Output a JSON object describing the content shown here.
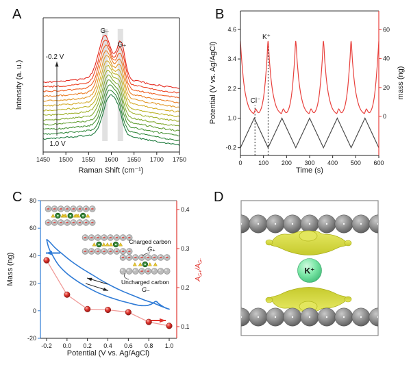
{
  "figure": {
    "panels": [
      {
        "label": "A"
      },
      {
        "label": "B"
      },
      {
        "label": "C"
      },
      {
        "label": "D"
      }
    ]
  },
  "chart_data": [
    {
      "id": "A",
      "type": "line",
      "xlabel": "Raman Shift (cm⁻¹)",
      "ylabel": "Intensity (a. u.)",
      "xlim": [
        1450,
        1750
      ],
      "xticks": [
        1450,
        1500,
        1550,
        1600,
        1650,
        1700,
        1750
      ],
      "grid": false,
      "n_spectra": 13,
      "potential_range_labels": {
        "top": "-0.2 V",
        "bottom": "1.0 V"
      },
      "peak_labels": [
        {
          "text": "G₋",
          "x_cm": 1586
        },
        {
          "text": "G₊",
          "x_cm": 1622
        }
      ],
      "band_centers_cm": [
        1586,
        1620
      ],
      "curve_colors_bottom_to_top": [
        "#1d7a3c",
        "#2f8739",
        "#479336",
        "#639f34",
        "#82aa31",
        "#a1b22e",
        "#bdb42b",
        "#d4ab29",
        "#e29726",
        "#ea7d24",
        "#ee5f22",
        "#ec4120",
        "#e4281e"
      ]
    },
    {
      "id": "B",
      "type": "line",
      "xlabel": "Time (s)",
      "ylabel_left": "Potential (V vs. Ag/AgCl)",
      "ylabel_right": "mass (ng)",
      "xlim": [
        0,
        600
      ],
      "xticks": [
        0,
        100,
        200,
        300,
        400,
        500,
        600
      ],
      "yticks_left": [
        4.6,
        3.4,
        2.2,
        1.0,
        -0.2
      ],
      "yticks_right": [
        0,
        20,
        40,
        60
      ],
      "annotations": [
        {
          "text": "K⁺",
          "t": 120
        },
        {
          "text": "Cl⁻",
          "t": 63
        }
      ],
      "series": [
        {
          "name": "potential",
          "color": "#4a4a4a",
          "waveform": "triangle",
          "min_V": -0.2,
          "max_V": 1.0,
          "period_s": 120,
          "cycles": 5
        },
        {
          "name": "mass",
          "color": "#e8403c",
          "period_s": 120,
          "peak_ng": 52,
          "cycle_points_t_ng": [
            [
              0,
              52
            ],
            [
              6,
              38
            ],
            [
              12,
              27
            ],
            [
              18,
              19
            ],
            [
              24,
              13.5
            ],
            [
              30,
              9.5
            ],
            [
              36,
              6.5
            ],
            [
              42,
              4.5
            ],
            [
              48,
              3.2
            ],
            [
              54,
              2.3
            ],
            [
              58,
              2.1
            ],
            [
              62,
              3.8
            ],
            [
              66,
              5.2
            ],
            [
              70,
              4.2
            ],
            [
              75,
              2.9
            ],
            [
              80,
              2.6
            ],
            [
              85,
              3.6
            ],
            [
              90,
              5.5
            ],
            [
              95,
              8.5
            ],
            [
              100,
              13
            ],
            [
              105,
              19.5
            ],
            [
              110,
              28.5
            ],
            [
              115,
              39.5
            ],
            [
              120,
              52
            ]
          ]
        }
      ]
    },
    {
      "id": "C",
      "type": "line+scatter",
      "xlabel": "Potential (V vs. Ag/AgCl)",
      "ylabel_left": "Mass (ng)",
      "ylabel_right_parts": [
        "A",
        "G+",
        "/A",
        "G-"
      ],
      "xticks": [
        -0.2,
        0.0,
        0.2,
        0.4,
        0.6,
        0.8,
        1.0
      ],
      "yticks_left": [
        -20,
        0,
        20,
        40,
        60,
        80
      ],
      "yticks_right": [
        0.1,
        0.2,
        0.3,
        0.4
      ],
      "colors": {
        "mass_loop": "#2f7bd6",
        "ratio_marker": "#e0352f",
        "ratio_line": "#f09a98"
      },
      "series": [
        {
          "name": "mass_loop",
          "loop_V_ng": [
            [
              -0.2,
              52
            ],
            [
              -0.17,
              50
            ],
            [
              -0.12,
              46
            ],
            [
              -0.05,
              41.5
            ],
            [
              0.05,
              35.5
            ],
            [
              0.15,
              30.5
            ],
            [
              0.25,
              26
            ],
            [
              0.35,
              21.5
            ],
            [
              0.45,
              17.5
            ],
            [
              0.55,
              14
            ],
            [
              0.65,
              11
            ],
            [
              0.75,
              8
            ],
            [
              0.85,
              5.5
            ],
            [
              0.93,
              3
            ],
            [
              1.0,
              1.2
            ],
            [
              0.96,
              2.2
            ],
            [
              0.9,
              5
            ],
            [
              0.87,
              6.8
            ],
            [
              0.83,
              5
            ],
            [
              0.78,
              3.8
            ],
            [
              0.7,
              4
            ],
            [
              0.6,
              5.8
            ],
            [
              0.5,
              7.8
            ],
            [
              0.4,
              10.2
            ],
            [
              0.3,
              13.2
            ],
            [
              0.2,
              17
            ],
            [
              0.1,
              21.5
            ],
            [
              0.0,
              27
            ],
            [
              -0.08,
              33
            ],
            [
              -0.14,
              40
            ],
            [
              -0.18,
              46
            ],
            [
              -0.2,
              52
            ]
          ]
        },
        {
          "name": "ratio",
          "points_V_ratio": [
            [
              -0.2,
              0.27
            ],
            [
              0.0,
              0.182
            ],
            [
              0.2,
              0.145
            ],
            [
              0.4,
              0.143
            ],
            [
              0.6,
              0.137
            ],
            [
              0.8,
              0.112
            ],
            [
              1.0,
              0.102
            ]
          ]
        }
      ],
      "inset_labels": {
        "charged": "Charged carbon",
        "charged_sub": "G₊",
        "uncharged": "Uncharged carbon",
        "uncharged_sub": "G₋"
      },
      "insets": [
        {
          "x": 66,
          "y": 38,
          "atoms": 8,
          "ions": 3,
          "top_charged": true,
          "bottom_charged": true
        },
        {
          "x": 120,
          "y": 80,
          "atoms": 8,
          "ions": 2,
          "top_charged": true,
          "bottom_charged": true
        },
        {
          "x": 175,
          "y": 109,
          "atoms": 8,
          "ions": 1,
          "top_charged": true,
          "bottom_charged": false
        }
      ]
    },
    {
      "id": "D",
      "type": "structure",
      "ion_label": "K⁺",
      "top_row_atoms": 9,
      "bottom_row_atoms": 9,
      "colors": {
        "carbon": "#7a7a7a",
        "ion": "#7de8a8",
        "isosurface": "#d2d63c"
      }
    }
  ]
}
